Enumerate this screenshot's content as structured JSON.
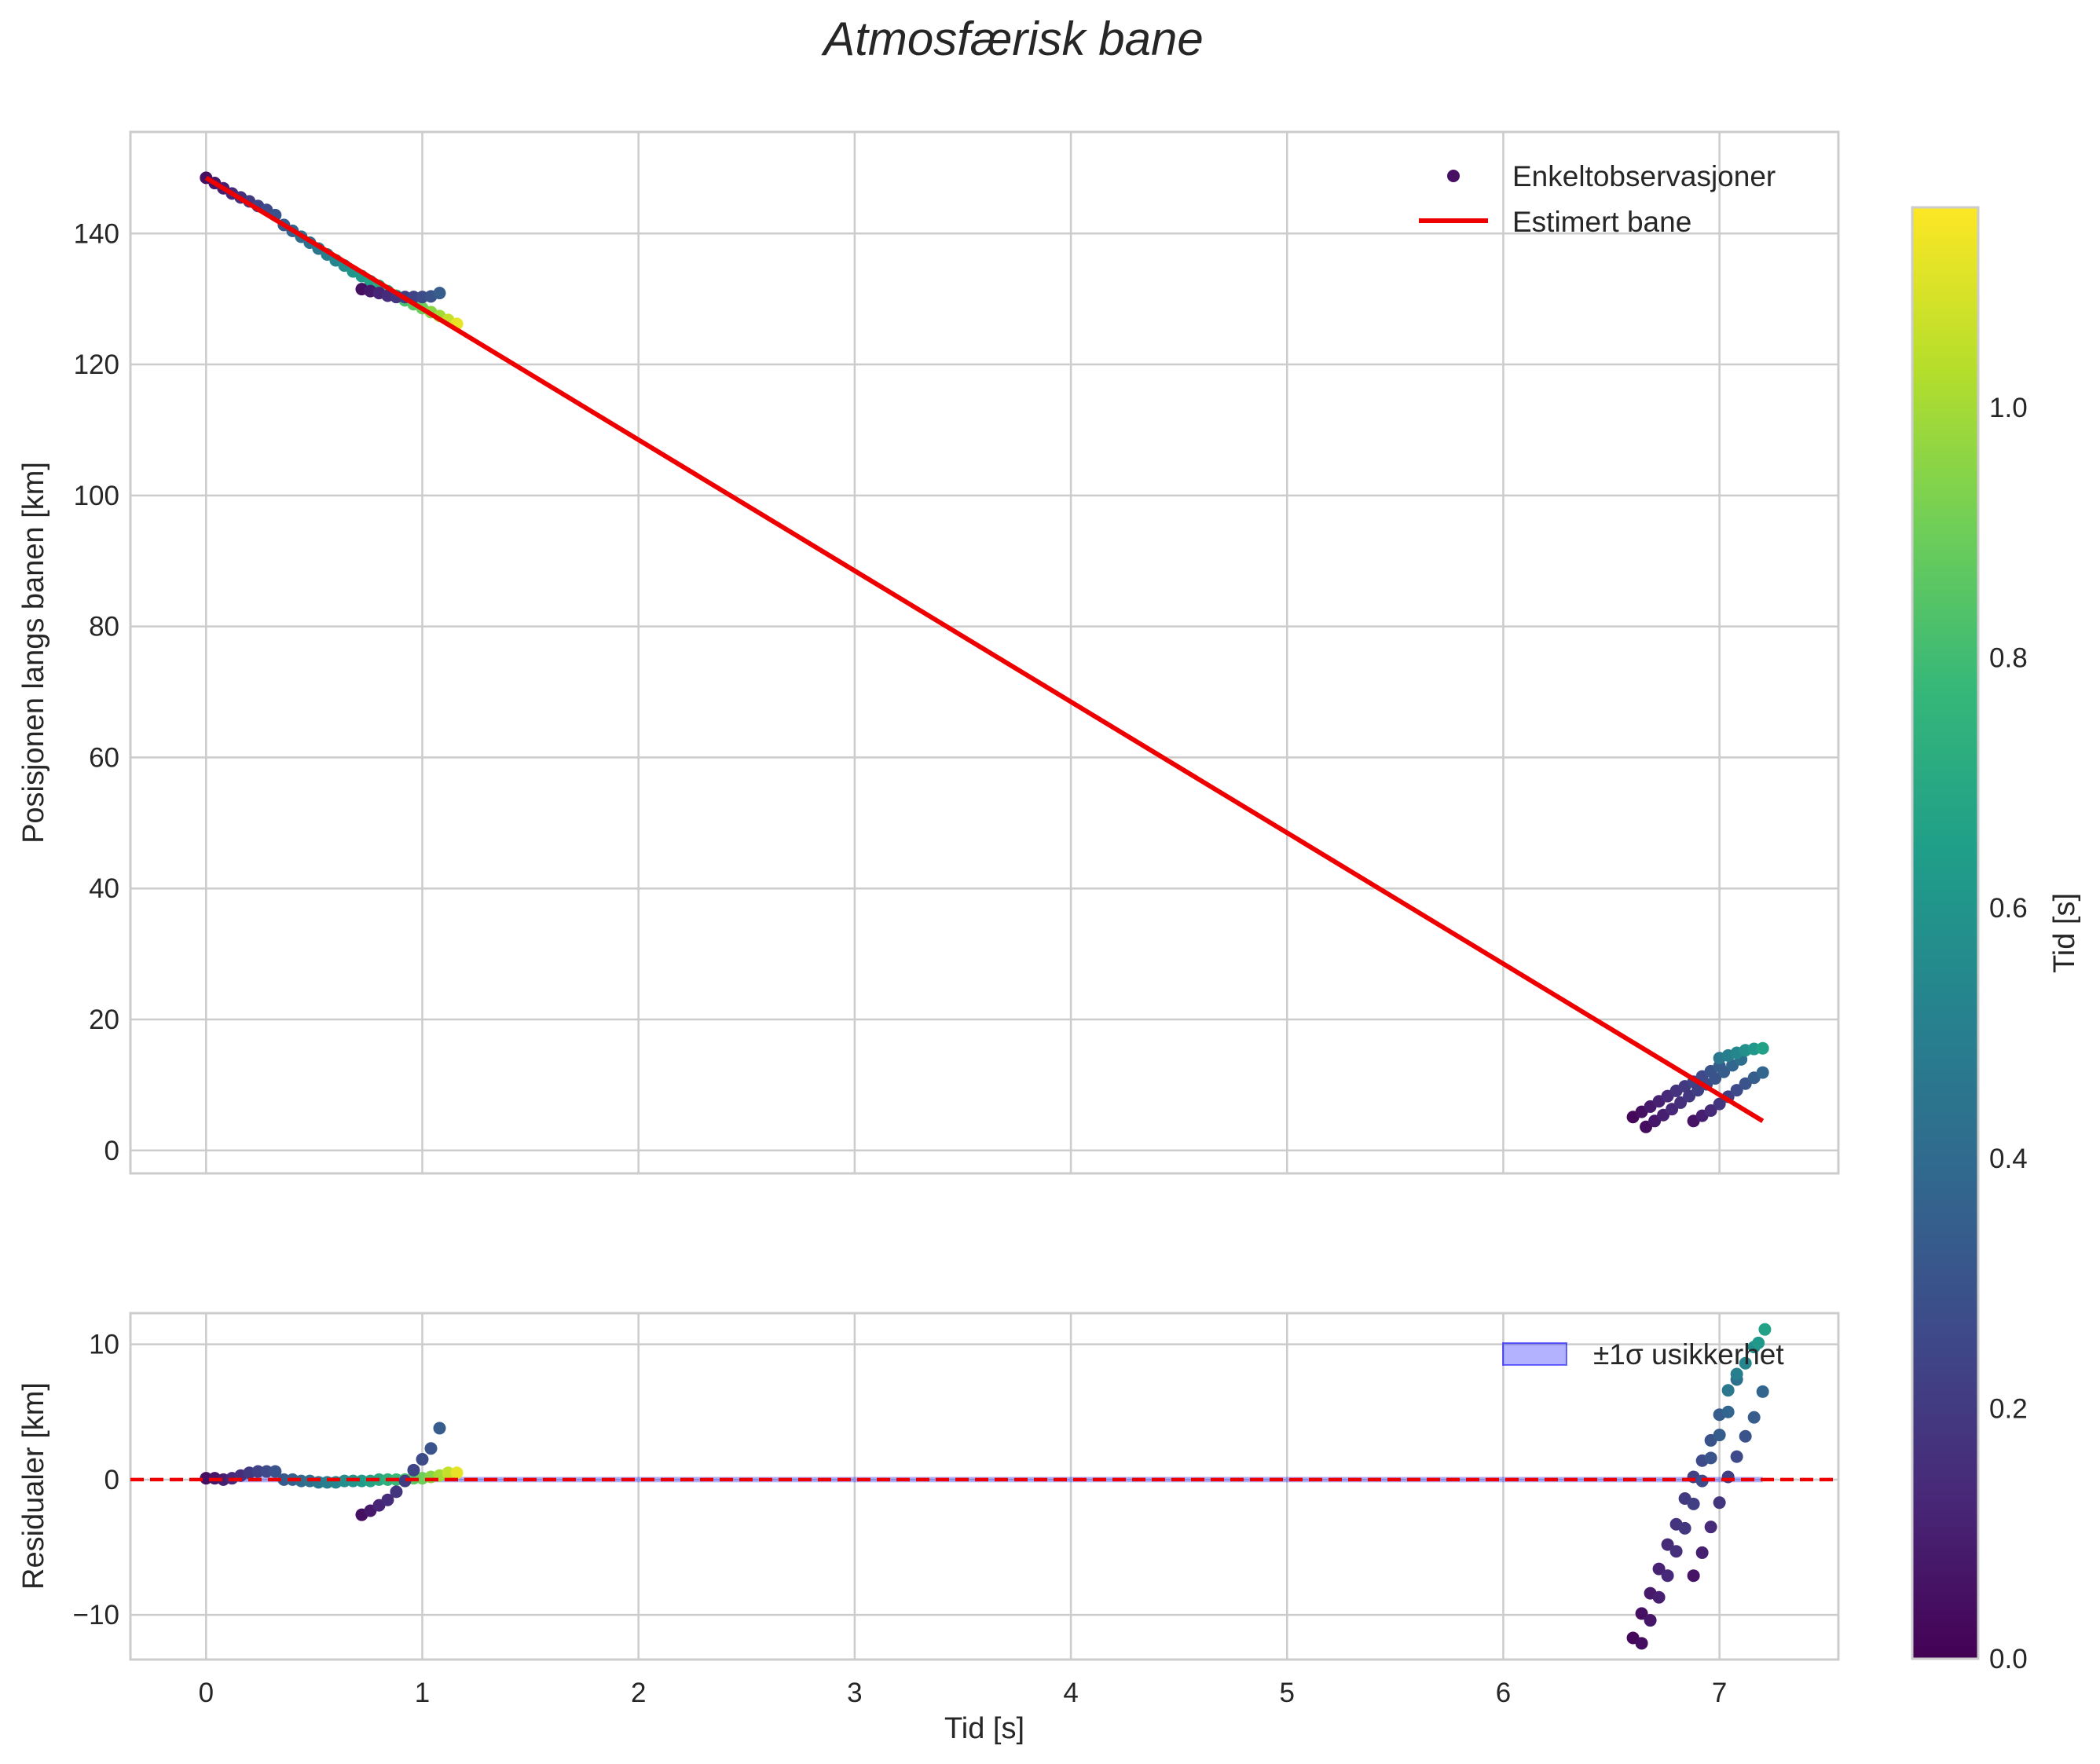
{
  "figure": {
    "title": "Atmosfærisk bane"
  },
  "chart_data": [
    {
      "type": "scatter",
      "title": "",
      "xlabel": "",
      "ylabel": "Posisjonen langs banen [km]",
      "xlim": [
        -0.35,
        7.55
      ],
      "ylim": [
        -3.5,
        155.5
      ],
      "x_ticks": [
        0,
        1,
        2,
        3,
        4,
        5,
        6,
        7
      ],
      "y_ticks": [
        0,
        20,
        40,
        60,
        80,
        100,
        120,
        140
      ],
      "grid": true,
      "legend": {
        "placement": "top-right",
        "entries": [
          "Enkeltobservasjoner",
          "Estimert bane"
        ]
      },
      "fit_line": {
        "name": "Estimert bane",
        "color": "#ee0000",
        "x": [
          0.0,
          7.2
        ],
        "y": [
          148.5,
          4.5
        ]
      },
      "series": [
        {
          "name": "Enkeltobservasjoner",
          "comment": "color encodes Tid [s] (0.0-1.15, viridis)",
          "points": [
            {
              "x": 0.0,
              "y": 148.5,
              "c": 0.05
            },
            {
              "x": 0.04,
              "y": 147.7,
              "c": 0.07
            },
            {
              "x": 0.08,
              "y": 146.9,
              "c": 0.1
            },
            {
              "x": 0.12,
              "y": 146.1,
              "c": 0.13
            },
            {
              "x": 0.16,
              "y": 145.5,
              "c": 0.16
            },
            {
              "x": 0.2,
              "y": 144.9,
              "c": 0.2
            },
            {
              "x": 0.24,
              "y": 144.2,
              "c": 0.23
            },
            {
              "x": 0.28,
              "y": 143.6,
              "c": 0.26
            },
            {
              "x": 0.32,
              "y": 142.8,
              "c": 0.3
            },
            {
              "x": 0.36,
              "y": 141.3,
              "c": 0.33
            },
            {
              "x": 0.4,
              "y": 140.4,
              "c": 0.36
            },
            {
              "x": 0.44,
              "y": 139.5,
              "c": 0.4
            },
            {
              "x": 0.48,
              "y": 138.6,
              "c": 0.43
            },
            {
              "x": 0.52,
              "y": 137.7,
              "c": 0.46
            },
            {
              "x": 0.56,
              "y": 136.8,
              "c": 0.5
            },
            {
              "x": 0.6,
              "y": 135.9,
              "c": 0.53
            },
            {
              "x": 0.64,
              "y": 135.1,
              "c": 0.57
            },
            {
              "x": 0.68,
              "y": 134.2,
              "c": 0.6
            },
            {
              "x": 0.72,
              "y": 133.5,
              "c": 0.63
            },
            {
              "x": 0.76,
              "y": 132.7,
              "c": 0.67
            },
            {
              "x": 0.8,
              "y": 132.0,
              "c": 0.7
            },
            {
              "x": 0.84,
              "y": 131.2,
              "c": 0.74
            },
            {
              "x": 0.88,
              "y": 130.5,
              "c": 0.78
            },
            {
              "x": 0.92,
              "y": 129.8,
              "c": 0.82
            },
            {
              "x": 0.96,
              "y": 129.2,
              "c": 0.86
            },
            {
              "x": 1.0,
              "y": 128.6,
              "c": 0.9
            },
            {
              "x": 1.04,
              "y": 128.0,
              "c": 0.95
            },
            {
              "x": 1.08,
              "y": 127.4,
              "c": 1.0
            },
            {
              "x": 1.12,
              "y": 126.8,
              "c": 1.06
            },
            {
              "x": 1.16,
              "y": 126.2,
              "c": 1.12
            },
            {
              "x": 0.72,
              "y": 131.5,
              "c": 0.05
            },
            {
              "x": 0.76,
              "y": 131.2,
              "c": 0.08
            },
            {
              "x": 0.8,
              "y": 130.9,
              "c": 0.12
            },
            {
              "x": 0.84,
              "y": 130.5,
              "c": 0.15
            },
            {
              "x": 0.88,
              "y": 130.3,
              "c": 0.18
            },
            {
              "x": 0.92,
              "y": 130.3,
              "c": 0.21
            },
            {
              "x": 0.96,
              "y": 130.3,
              "c": 0.24
            },
            {
              "x": 1.0,
              "y": 130.3,
              "c": 0.27
            },
            {
              "x": 1.04,
              "y": 130.4,
              "c": 0.3
            },
            {
              "x": 1.08,
              "y": 130.9,
              "c": 0.34
            },
            {
              "x": 6.6,
              "y": 5.1,
              "c": 0.02
            },
            {
              "x": 6.64,
              "y": 5.9,
              "c": 0.05
            },
            {
              "x": 6.68,
              "y": 6.7,
              "c": 0.08
            },
            {
              "x": 6.72,
              "y": 7.5,
              "c": 0.11
            },
            {
              "x": 6.76,
              "y": 8.3,
              "c": 0.14
            },
            {
              "x": 6.8,
              "y": 9.1,
              "c": 0.17
            },
            {
              "x": 6.84,
              "y": 9.8,
              "c": 0.2
            },
            {
              "x": 6.88,
              "y": 10.5,
              "c": 0.23
            },
            {
              "x": 6.92,
              "y": 11.3,
              "c": 0.26
            },
            {
              "x": 6.96,
              "y": 12.1,
              "c": 0.3
            },
            {
              "x": 7.0,
              "y": 12.9,
              "c": 0.34
            },
            {
              "x": 6.66,
              "y": 3.6,
              "c": 0.04
            },
            {
              "x": 6.7,
              "y": 4.5,
              "c": 0.07
            },
            {
              "x": 6.74,
              "y": 5.4,
              "c": 0.1
            },
            {
              "x": 6.78,
              "y": 6.3,
              "c": 0.13
            },
            {
              "x": 6.82,
              "y": 7.3,
              "c": 0.16
            },
            {
              "x": 6.86,
              "y": 8.3,
              "c": 0.19
            },
            {
              "x": 6.9,
              "y": 9.2,
              "c": 0.22
            },
            {
              "x": 6.94,
              "y": 10.1,
              "c": 0.26
            },
            {
              "x": 6.98,
              "y": 11.0,
              "c": 0.3
            },
            {
              "x": 7.02,
              "y": 12.0,
              "c": 0.34
            },
            {
              "x": 7.06,
              "y": 13.0,
              "c": 0.38
            },
            {
              "x": 7.1,
              "y": 13.9,
              "c": 0.42
            },
            {
              "x": 6.88,
              "y": 4.5,
              "c": 0.06
            },
            {
              "x": 6.92,
              "y": 5.3,
              "c": 0.1
            },
            {
              "x": 6.96,
              "y": 6.1,
              "c": 0.14
            },
            {
              "x": 7.0,
              "y": 7.1,
              "c": 0.18
            },
            {
              "x": 7.04,
              "y": 8.2,
              "c": 0.22
            },
            {
              "x": 7.08,
              "y": 9.2,
              "c": 0.26
            },
            {
              "x": 7.12,
              "y": 10.2,
              "c": 0.3
            },
            {
              "x": 7.16,
              "y": 11.1,
              "c": 0.34
            },
            {
              "x": 7.2,
              "y": 11.9,
              "c": 0.38
            },
            {
              "x": 7.0,
              "y": 14.1,
              "c": 0.46
            },
            {
              "x": 7.04,
              "y": 14.5,
              "c": 0.5
            },
            {
              "x": 7.08,
              "y": 14.9,
              "c": 0.54
            },
            {
              "x": 7.12,
              "y": 15.3,
              "c": 0.58
            },
            {
              "x": 7.16,
              "y": 15.5,
              "c": 0.62
            },
            {
              "x": 7.2,
              "y": 15.6,
              "c": 0.66
            }
          ]
        }
      ]
    },
    {
      "type": "scatter",
      "title": "",
      "xlabel": "Tid [s]",
      "ylabel": "Residualer [km]",
      "xlim": [
        -0.35,
        7.55
      ],
      "ylim": [
        -13.3,
        12.3
      ],
      "x_ticks": [
        0,
        1,
        2,
        3,
        4,
        5,
        6,
        7
      ],
      "y_ticks": [
        -10,
        0,
        10
      ],
      "grid": true,
      "legend": {
        "placement": "top-right",
        "entries": [
          "±1σ usikkerhet"
        ]
      },
      "zero_line": {
        "y": 0,
        "color": "#ee0000",
        "style": "dashed"
      },
      "uncertainty_band": {
        "name": "±1σ usikkerhet",
        "color": "#0000ff",
        "alpha": 0.3,
        "x": [
          0.0,
          7.2
        ],
        "sigma": 0.2
      },
      "series": [
        {
          "name": "Residualer",
          "points": [
            {
              "x": 0.0,
              "y": 0.1,
              "c": 0.05
            },
            {
              "x": 0.04,
              "y": 0.1,
              "c": 0.07
            },
            {
              "x": 0.08,
              "y": 0.0,
              "c": 0.1
            },
            {
              "x": 0.12,
              "y": 0.1,
              "c": 0.13
            },
            {
              "x": 0.16,
              "y": 0.3,
              "c": 0.16
            },
            {
              "x": 0.2,
              "y": 0.5,
              "c": 0.2
            },
            {
              "x": 0.24,
              "y": 0.6,
              "c": 0.23
            },
            {
              "x": 0.28,
              "y": 0.6,
              "c": 0.26
            },
            {
              "x": 0.32,
              "y": 0.6,
              "c": 0.3
            },
            {
              "x": 0.36,
              "y": 0.0,
              "c": 0.33
            },
            {
              "x": 0.4,
              "y": 0.0,
              "c": 0.36
            },
            {
              "x": 0.44,
              "y": -0.1,
              "c": 0.4
            },
            {
              "x": 0.48,
              "y": -0.1,
              "c": 0.43
            },
            {
              "x": 0.52,
              "y": -0.2,
              "c": 0.46
            },
            {
              "x": 0.56,
              "y": -0.2,
              "c": 0.5
            },
            {
              "x": 0.6,
              "y": -0.2,
              "c": 0.53
            },
            {
              "x": 0.64,
              "y": -0.1,
              "c": 0.57
            },
            {
              "x": 0.68,
              "y": -0.1,
              "c": 0.6
            },
            {
              "x": 0.72,
              "y": -0.1,
              "c": 0.63
            },
            {
              "x": 0.76,
              "y": -0.1,
              "c": 0.67
            },
            {
              "x": 0.8,
              "y": 0.0,
              "c": 0.7
            },
            {
              "x": 0.84,
              "y": 0.0,
              "c": 0.74
            },
            {
              "x": 0.88,
              "y": 0.0,
              "c": 0.78
            },
            {
              "x": 0.92,
              "y": 0.0,
              "c": 0.82
            },
            {
              "x": 0.96,
              "y": 0.1,
              "c": 0.86
            },
            {
              "x": 1.0,
              "y": 0.1,
              "c": 0.9
            },
            {
              "x": 1.04,
              "y": 0.2,
              "c": 0.95
            },
            {
              "x": 1.08,
              "y": 0.3,
              "c": 1.0
            },
            {
              "x": 1.12,
              "y": 0.5,
              "c": 1.06
            },
            {
              "x": 1.16,
              "y": 0.5,
              "c": 1.12
            },
            {
              "x": 0.72,
              "y": -2.6,
              "c": 0.05
            },
            {
              "x": 0.76,
              "y": -2.3,
              "c": 0.08
            },
            {
              "x": 0.8,
              "y": -1.9,
              "c": 0.12
            },
            {
              "x": 0.84,
              "y": -1.5,
              "c": 0.15
            },
            {
              "x": 0.88,
              "y": -0.9,
              "c": 0.18
            },
            {
              "x": 0.92,
              "y": -0.1,
              "c": 0.21
            },
            {
              "x": 0.96,
              "y": 0.7,
              "c": 0.24
            },
            {
              "x": 1.0,
              "y": 1.5,
              "c": 0.27
            },
            {
              "x": 1.04,
              "y": 2.3,
              "c": 0.3
            },
            {
              "x": 1.08,
              "y": 3.8,
              "c": 0.34
            },
            {
              "x": 6.6,
              "y": -11.7,
              "c": 0.02
            },
            {
              "x": 6.64,
              "y": -9.9,
              "c": 0.05
            },
            {
              "x": 6.68,
              "y": -8.4,
              "c": 0.08
            },
            {
              "x": 6.72,
              "y": -6.6,
              "c": 0.11
            },
            {
              "x": 6.76,
              "y": -4.8,
              "c": 0.14
            },
            {
              "x": 6.8,
              "y": -3.3,
              "c": 0.17
            },
            {
              "x": 6.84,
              "y": -1.4,
              "c": 0.2
            },
            {
              "x": 6.88,
              "y": 0.2,
              "c": 0.23
            },
            {
              "x": 6.92,
              "y": 1.4,
              "c": 0.26
            },
            {
              "x": 6.96,
              "y": 2.9,
              "c": 0.3
            },
            {
              "x": 7.0,
              "y": 4.8,
              "c": 0.34
            },
            {
              "x": 6.64,
              "y": -12.1,
              "c": 0.04
            },
            {
              "x": 6.68,
              "y": -10.4,
              "c": 0.07
            },
            {
              "x": 6.72,
              "y": -8.7,
              "c": 0.1
            },
            {
              "x": 6.76,
              "y": -7.1,
              "c": 0.13
            },
            {
              "x": 6.8,
              "y": -5.3,
              "c": 0.16
            },
            {
              "x": 6.84,
              "y": -3.6,
              "c": 0.19
            },
            {
              "x": 6.88,
              "y": -1.8,
              "c": 0.22
            },
            {
              "x": 6.92,
              "y": -0.1,
              "c": 0.26
            },
            {
              "x": 6.96,
              "y": 1.6,
              "c": 0.3
            },
            {
              "x": 7.0,
              "y": 3.3,
              "c": 0.34
            },
            {
              "x": 7.04,
              "y": 5.0,
              "c": 0.38
            },
            {
              "x": 7.08,
              "y": 7.4,
              "c": 0.42
            },
            {
              "x": 6.88,
              "y": -7.1,
              "c": 0.06
            },
            {
              "x": 6.92,
              "y": -5.4,
              "c": 0.1
            },
            {
              "x": 6.96,
              "y": -3.5,
              "c": 0.14
            },
            {
              "x": 7.0,
              "y": -1.7,
              "c": 0.18
            },
            {
              "x": 7.04,
              "y": 0.2,
              "c": 0.22
            },
            {
              "x": 7.08,
              "y": 1.7,
              "c": 0.26
            },
            {
              "x": 7.12,
              "y": 3.2,
              "c": 0.3
            },
            {
              "x": 7.16,
              "y": 4.6,
              "c": 0.34
            },
            {
              "x": 7.2,
              "y": 6.5,
              "c": 0.38
            },
            {
              "x": 7.04,
              "y": 6.6,
              "c": 0.46
            },
            {
              "x": 7.08,
              "y": 7.8,
              "c": 0.5
            },
            {
              "x": 7.12,
              "y": 8.6,
              "c": 0.54
            },
            {
              "x": 7.16,
              "y": 9.8,
              "c": 0.58
            },
            {
              "x": 7.18,
              "y": 10.1,
              "c": 0.62
            },
            {
              "x": 7.21,
              "y": 11.1,
              "c": 0.66
            }
          ]
        }
      ]
    }
  ],
  "colorbar": {
    "label": "Tid [s]",
    "range": [
      0.0,
      1.16
    ],
    "ticks": [
      "0.0",
      "0.2",
      "0.4",
      "0.6",
      "0.8",
      "1.0"
    ],
    "tick_values": [
      0.0,
      0.2,
      0.4,
      0.6,
      0.8,
      1.0
    ],
    "colormap": "viridis",
    "stops": [
      "#440154",
      "#482878",
      "#3e4989",
      "#31688e",
      "#26828e",
      "#1f9e89",
      "#35b779",
      "#6ece58",
      "#b5de2b",
      "#fde725"
    ]
  }
}
